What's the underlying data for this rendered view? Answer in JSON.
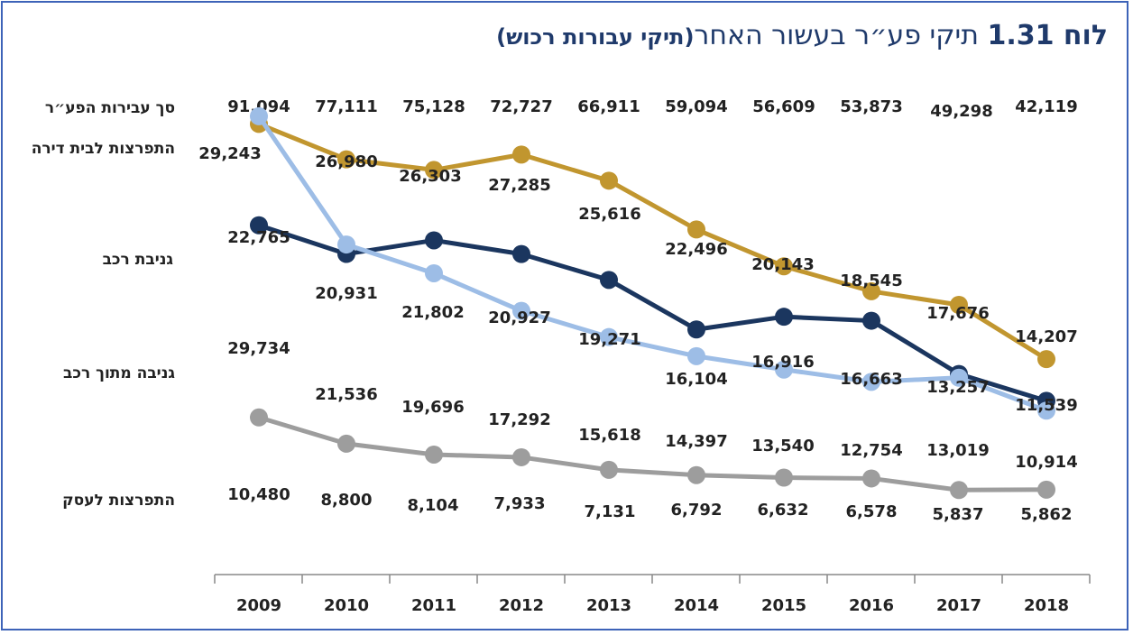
{
  "title": {
    "prefix": "לוח ",
    "number": "1.31",
    "text": " תיקי פע״ר בעשור האחר",
    "subtitle": "(תיקי עבורות רכוש)"
  },
  "row_labels": {
    "total": "סך עבירות הפע״ר",
    "burglary_home": "התפרצות לבית דירה",
    "car_theft": "גניבת רכב",
    "theft_from_car": "גניבה מתוך רכב",
    "burglary_business": "התפרצות לעסק"
  },
  "colors": {
    "burglary_home": "#c1962f",
    "car_theft": "#1b365f",
    "theft_from_car": "#9dbde6",
    "burglary_business": "#9d9d9d",
    "frame": "#3d63b8",
    "title": "#1f3a6b",
    "axis": "#888888"
  },
  "chart_data": {
    "type": "line",
    "x": [
      "2009",
      "2010",
      "2011",
      "2012",
      "2013",
      "2014",
      "2015",
      "2016",
      "2017",
      "2018"
    ],
    "totals": [
      "91,094",
      "77,111",
      "75,128",
      "72,727",
      "66,911",
      "59,094",
      "56,609",
      "53,873",
      "49,298",
      "42,119"
    ],
    "series": [
      {
        "key": "burglary_home",
        "name": "התפרצות לבית דירה",
        "values": [
          29243,
          26980,
          26303,
          27285,
          25616,
          22496,
          20143,
          18545,
          17676,
          14207
        ],
        "labels": [
          "29,243",
          "26,980",
          "26,303",
          "27,285",
          "25,616",
          "22,496",
          "20,143",
          "18,545",
          "17,676",
          "14,207"
        ]
      },
      {
        "key": "car_theft",
        "name": "גניבת רכב",
        "values": [
          22765,
          20931,
          21802,
          20927,
          19271,
          16104,
          16916,
          16663,
          13257,
          11539
        ],
        "labels": [
          "22,765",
          "20,931",
          "21,802",
          "20,927",
          "19,271",
          "16,104",
          "16,916",
          "16,663",
          "13,257",
          "11,539"
        ]
      },
      {
        "key": "theft_from_car",
        "name": "גניבה מתוך רכב",
        "values": [
          29734,
          21536,
          19696,
          17292,
          15618,
          14397,
          13540,
          12754,
          13019,
          10914
        ],
        "labels": [
          "29,734",
          "21,536",
          "19,696",
          "17,292",
          "15,618",
          "14,397",
          "13,540",
          "12,754",
          "13,019",
          "10,914"
        ]
      },
      {
        "key": "burglary_business",
        "name": "התפרצות לעסק",
        "values": [
          10480,
          8800,
          8104,
          7933,
          7131,
          6792,
          6632,
          6578,
          5837,
          5862
        ],
        "labels": [
          "10,480",
          "8,800",
          "8,104",
          "7,933",
          "7,131",
          "6,792",
          "6,632",
          "6,578",
          "5,837",
          "5,862"
        ]
      }
    ],
    "grid": false,
    "legend": "left"
  }
}
